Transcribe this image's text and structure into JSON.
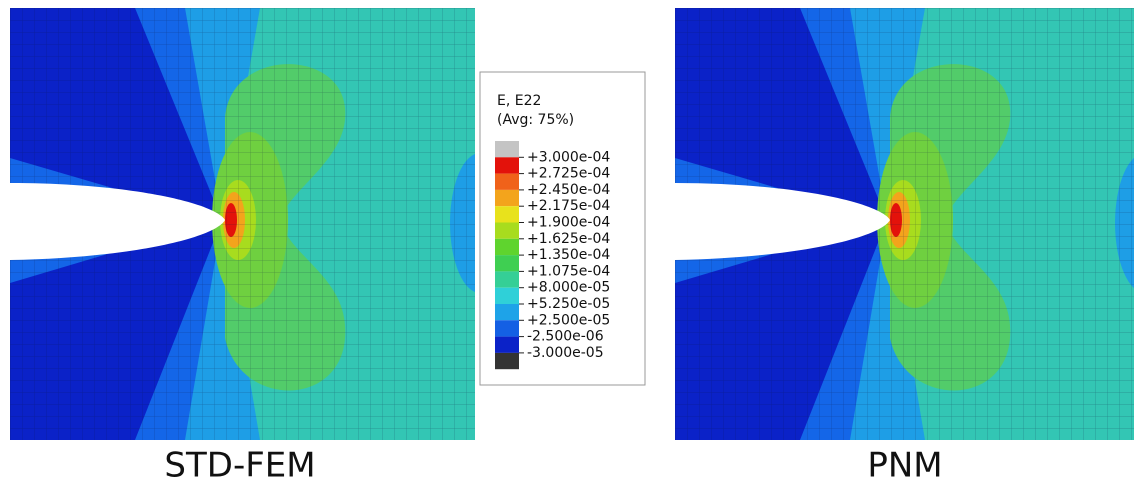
{
  "legend": {
    "title": "E, E22",
    "subtitle": "(Avg: 75%)",
    "levels": [
      "+3.000e-04",
      "+2.725e-04",
      "+2.450e-04",
      "+2.175e-04",
      "+1.900e-04",
      "+1.625e-04",
      "+1.350e-04",
      "+1.075e-04",
      "+8.000e-05",
      "+5.250e-05",
      "+2.500e-05",
      "-2.500e-06",
      "-3.000e-05"
    ],
    "colors": [
      "#c4c4c4",
      "#e3120b",
      "#f0621a",
      "#f3a41c",
      "#e8e21c",
      "#a8dc1e",
      "#5fd42e",
      "#3fcf52",
      "#35cf96",
      "#2fd0d8",
      "#1ea3e8",
      "#1460e4",
      "#0b22c8",
      "#333333"
    ]
  },
  "panels": [
    {
      "caption": "STD-FEM"
    },
    {
      "caption": "PNM"
    }
  ]
}
